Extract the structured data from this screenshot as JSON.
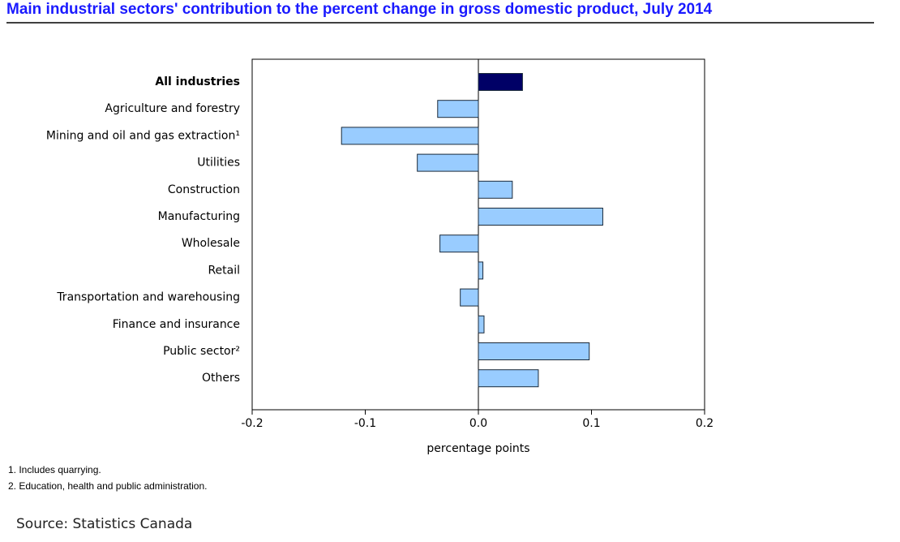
{
  "chart_data": {
    "type": "bar",
    "orientation": "horizontal",
    "title": "Main industrial sectors' contribution to the percent change in gross domestic product, July 2014",
    "categories": [
      "All industries",
      "Agriculture and forestry",
      "Mining and oil and gas extraction¹",
      "Utilities",
      "Construction",
      "Manufacturing",
      "Wholesale",
      "Retail",
      "Transportation and warehousing",
      "Finance and insurance",
      "Public sector²",
      "Others"
    ],
    "values": [
      0.039,
      -0.036,
      -0.121,
      -0.054,
      0.03,
      0.11,
      -0.034,
      0.004,
      -0.016,
      0.005,
      0.098,
      0.053
    ],
    "colors": [
      "#000066",
      "#99ccff",
      "#99ccff",
      "#99ccff",
      "#99ccff",
      "#99ccff",
      "#99ccff",
      "#99ccff",
      "#99ccff",
      "#99ccff",
      "#99ccff",
      "#99ccff"
    ],
    "xlim": [
      -0.2,
      0.2
    ],
    "xticks": [
      -0.2,
      -0.1,
      {
        "value": 0,
        "label": "0.0"
      },
      0.1,
      0.2
    ],
    "xlabel": "percentage points",
    "notes": [
      "1. Includes quarrying.",
      "2. Education, health and public administration."
    ],
    "source": "Source: Statistics Canada"
  }
}
